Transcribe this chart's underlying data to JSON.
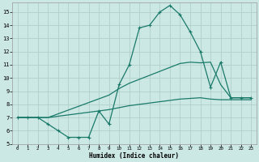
{
  "xlabel": "Humidex (Indice chaleur)",
  "bg_color": "#cce8e4",
  "grid_color": "#b0d0cc",
  "line_color": "#1a7a6a",
  "xlim": [
    -0.5,
    23.5
  ],
  "ylim": [
    5,
    15.7
  ],
  "xticks": [
    0,
    1,
    2,
    3,
    4,
    5,
    6,
    7,
    8,
    9,
    10,
    11,
    12,
    13,
    14,
    15,
    16,
    17,
    18,
    19,
    20,
    21,
    22,
    23
  ],
  "yticks": [
    5,
    6,
    7,
    8,
    9,
    10,
    11,
    12,
    13,
    14,
    15
  ],
  "line1_x": [
    0,
    1,
    2,
    3,
    4,
    5,
    6,
    7,
    8,
    9,
    10,
    11,
    12,
    13,
    14,
    15,
    16,
    17,
    18,
    19,
    20,
    21,
    22,
    23
  ],
  "line1_y": [
    7.0,
    7.0,
    7.0,
    6.5,
    6.0,
    5.5,
    5.5,
    5.5,
    7.5,
    6.5,
    9.5,
    11.0,
    13.8,
    14.0,
    15.0,
    15.5,
    14.8,
    13.5,
    12.0,
    9.3,
    11.2,
    8.5,
    8.5,
    8.5
  ],
  "line2_x": [
    0,
    3,
    9,
    10,
    11,
    12,
    13,
    14,
    15,
    16,
    17,
    18,
    19,
    20,
    21,
    22,
    23
  ],
  "line2_y": [
    7.0,
    7.0,
    8.7,
    9.2,
    9.6,
    9.9,
    10.2,
    10.5,
    10.8,
    11.1,
    11.2,
    11.15,
    11.2,
    9.5,
    8.5,
    8.5,
    8.5
  ],
  "line3_x": [
    0,
    3,
    9,
    10,
    11,
    12,
    13,
    14,
    15,
    16,
    17,
    18,
    19,
    20,
    21,
    22,
    23
  ],
  "line3_y": [
    7.0,
    7.0,
    7.6,
    7.75,
    7.9,
    8.0,
    8.1,
    8.2,
    8.3,
    8.4,
    8.45,
    8.5,
    8.4,
    8.35,
    8.35,
    8.35,
    8.35
  ]
}
